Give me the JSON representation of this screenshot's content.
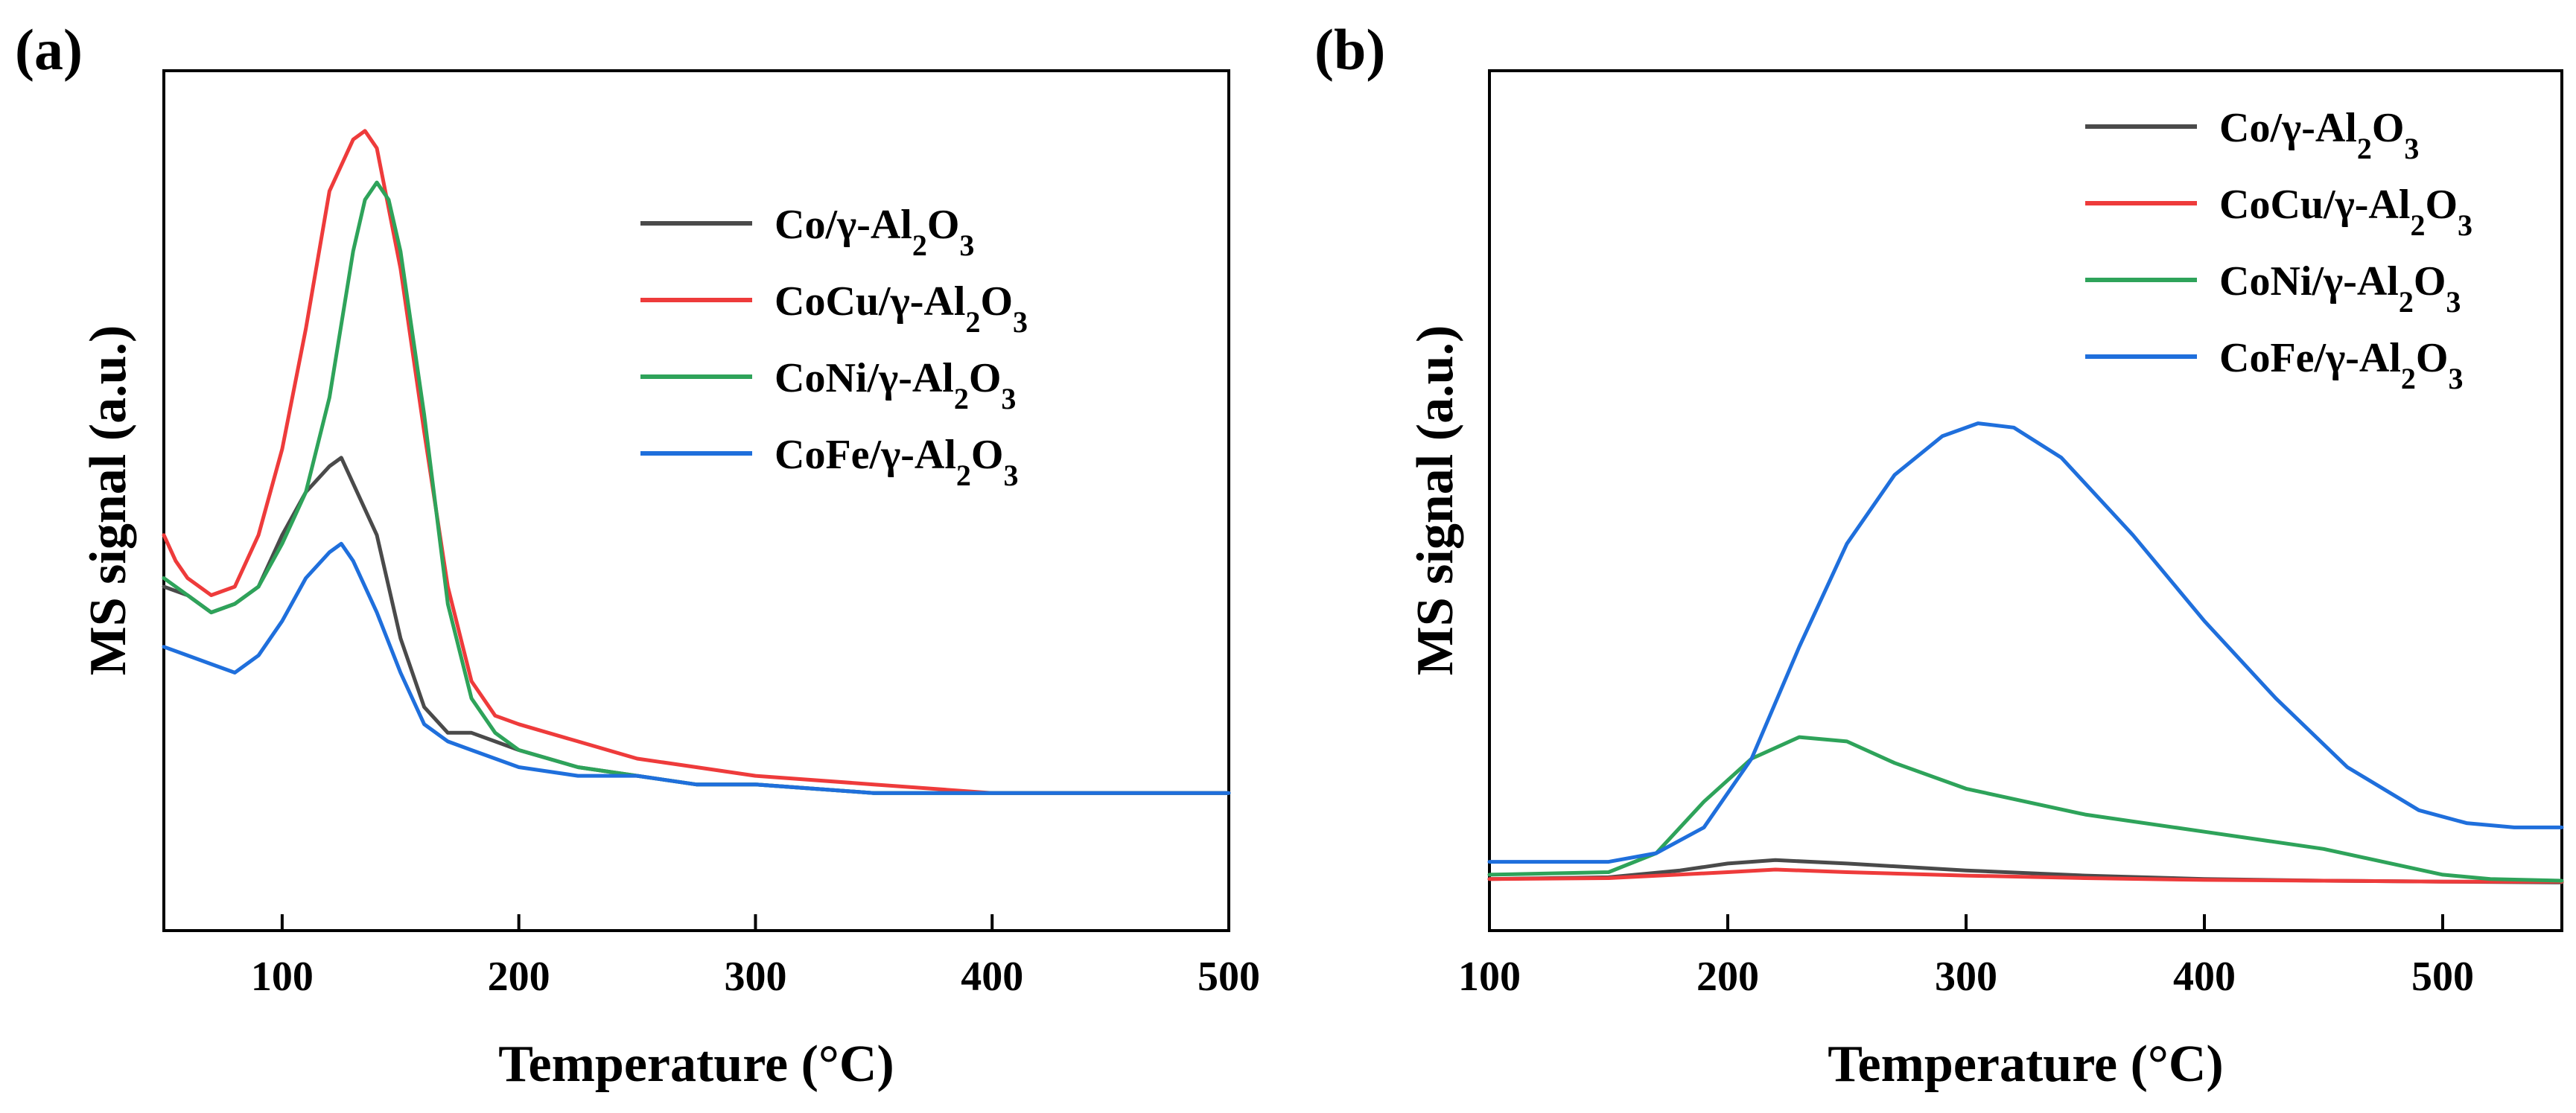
{
  "chart_data": [
    {
      "panel_label": "(a)",
      "type": "line",
      "xlabel": "Temperature (°C)",
      "ylabel": "MS signal (a.u.)",
      "xlim": [
        50,
        500
      ],
      "ylim": [
        0,
        1
      ],
      "xticks": [
        100,
        200,
        300,
        400,
        500
      ],
      "yticks_shown": false,
      "grid": false,
      "legend_position": "top-right",
      "series": [
        {
          "name": "Co/γ-Al",
          "name_sub1": "2",
          "name_mid": "O",
          "name_sub2": "3",
          "color": "#4a4a4a",
          "x": [
            50,
            60,
            70,
            80,
            90,
            100,
            110,
            120,
            125,
            130,
            140,
            150,
            160,
            170,
            180,
            190,
            200,
            225,
            250,
            275,
            300,
            350,
            400,
            450,
            500
          ],
          "y": [
            0.4,
            0.39,
            0.37,
            0.38,
            0.4,
            0.46,
            0.51,
            0.54,
            0.55,
            0.52,
            0.46,
            0.34,
            0.26,
            0.23,
            0.23,
            0.22,
            0.21,
            0.19,
            0.18,
            0.17,
            0.17,
            0.16,
            0.16,
            0.16,
            0.16
          ]
        },
        {
          "name": "CoCu/γ-Al",
          "name_sub1": "2",
          "name_mid": "O",
          "name_sub2": "3",
          "color": "#ee3b3b",
          "x": [
            50,
            55,
            60,
            70,
            80,
            90,
            100,
            110,
            120,
            130,
            135,
            140,
            150,
            160,
            170,
            180,
            190,
            200,
            225,
            250,
            275,
            300,
            350,
            400,
            450,
            500
          ],
          "y": [
            0.46,
            0.43,
            0.41,
            0.39,
            0.4,
            0.46,
            0.56,
            0.7,
            0.86,
            0.92,
            0.93,
            0.91,
            0.77,
            0.58,
            0.4,
            0.29,
            0.25,
            0.24,
            0.22,
            0.2,
            0.19,
            0.18,
            0.17,
            0.16,
            0.16,
            0.16
          ]
        },
        {
          "name": "CoNi/γ-Al",
          "name_sub1": "2",
          "name_mid": "O",
          "name_sub2": "3",
          "color": "#2ea35a",
          "x": [
            50,
            60,
            70,
            80,
            90,
            100,
            110,
            120,
            130,
            135,
            140,
            145,
            150,
            160,
            170,
            180,
            190,
            200,
            225,
            250,
            275,
            300,
            350,
            400,
            450,
            500
          ],
          "y": [
            0.41,
            0.39,
            0.37,
            0.38,
            0.4,
            0.45,
            0.51,
            0.62,
            0.79,
            0.85,
            0.87,
            0.85,
            0.79,
            0.6,
            0.38,
            0.27,
            0.23,
            0.21,
            0.19,
            0.18,
            0.17,
            0.17,
            0.16,
            0.16,
            0.16,
            0.16
          ]
        },
        {
          "name": "CoFe/γ-Al",
          "name_sub1": "2",
          "name_mid": "O",
          "name_sub2": "3",
          "color": "#1f6fdc",
          "x": [
            50,
            60,
            70,
            80,
            90,
            100,
            110,
            120,
            125,
            130,
            140,
            150,
            160,
            170,
            180,
            190,
            200,
            225,
            250,
            275,
            300,
            350,
            400,
            450,
            500
          ],
          "y": [
            0.33,
            0.32,
            0.31,
            0.3,
            0.32,
            0.36,
            0.41,
            0.44,
            0.45,
            0.43,
            0.37,
            0.3,
            0.24,
            0.22,
            0.21,
            0.2,
            0.19,
            0.18,
            0.18,
            0.17,
            0.17,
            0.16,
            0.16,
            0.16,
            0.16
          ]
        }
      ]
    },
    {
      "panel_label": "(b)",
      "type": "line",
      "xlabel": "Temperature (°C)",
      "ylabel": "MS signal (a.u.)",
      "xlim": [
        100,
        550
      ],
      "ylim": [
        0,
        1
      ],
      "xticks": [
        100,
        200,
        300,
        400,
        500
      ],
      "yticks_shown": false,
      "grid": false,
      "legend_position": "top-right",
      "series": [
        {
          "name": "Co/γ-Al",
          "name_sub1": "2",
          "name_mid": "O",
          "name_sub2": "3",
          "color": "#4a4a4a",
          "x": [
            100,
            150,
            180,
            200,
            220,
            250,
            300,
            350,
            400,
            450,
            500,
            550
          ],
          "y": [
            0.06,
            0.062,
            0.07,
            0.078,
            0.082,
            0.078,
            0.07,
            0.064,
            0.06,
            0.058,
            0.057,
            0.056
          ]
        },
        {
          "name": "CoCu/γ-Al",
          "name_sub1": "2",
          "name_mid": "O",
          "name_sub2": "3",
          "color": "#ee3b3b",
          "x": [
            100,
            150,
            200,
            220,
            250,
            300,
            350,
            400,
            450,
            500,
            550
          ],
          "y": [
            0.06,
            0.061,
            0.068,
            0.071,
            0.068,
            0.064,
            0.061,
            0.059,
            0.058,
            0.057,
            0.057
          ]
        },
        {
          "name": "CoNi/γ-Al",
          "name_sub1": "2",
          "name_mid": "O",
          "name_sub2": "3",
          "color": "#2ea35a",
          "x": [
            100,
            150,
            170,
            190,
            210,
            230,
            250,
            270,
            300,
            350,
            400,
            450,
            500,
            520,
            550
          ],
          "y": [
            0.065,
            0.068,
            0.09,
            0.15,
            0.2,
            0.225,
            0.22,
            0.195,
            0.165,
            0.135,
            0.115,
            0.095,
            0.065,
            0.06,
            0.058
          ]
        },
        {
          "name": "CoFe/γ-Al",
          "name_sub1": "2",
          "name_mid": "O",
          "name_sub2": "3",
          "color": "#1f6fdc",
          "x": [
            100,
            150,
            170,
            190,
            210,
            230,
            250,
            270,
            290,
            305,
            320,
            340,
            370,
            400,
            430,
            460,
            490,
            510,
            530,
            550
          ],
          "y": [
            0.08,
            0.08,
            0.09,
            0.12,
            0.2,
            0.33,
            0.45,
            0.53,
            0.575,
            0.59,
            0.585,
            0.55,
            0.46,
            0.36,
            0.27,
            0.19,
            0.14,
            0.125,
            0.12,
            0.12
          ]
        }
      ]
    }
  ]
}
